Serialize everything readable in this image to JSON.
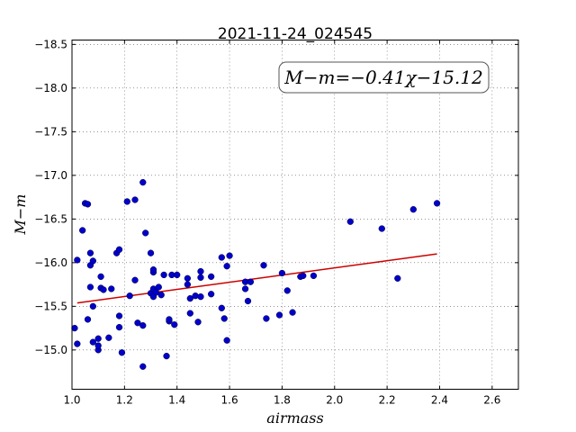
{
  "chart_data": {
    "type": "scatter",
    "title": "2021-11-24_024545",
    "xlabel": "airmass",
    "ylabel": "M−m",
    "xlim": [
      1.0,
      2.7
    ],
    "ylim": [
      -18.55,
      -14.55
    ],
    "y_inverted": true,
    "grid": true,
    "x_ticks": [
      "1.0",
      "1.2",
      "1.4",
      "1.6",
      "1.8",
      "2.0",
      "2.2",
      "2.4",
      "2.6"
    ],
    "y_ticks": [
      "−15.0",
      "−15.5",
      "−16.0",
      "−16.5",
      "−17.0",
      "−17.5",
      "−18.0",
      "−18.5"
    ],
    "annotation": "M−m=−0.41χ−15.12",
    "fit_line": {
      "slope": -0.41,
      "intercept": -15.12,
      "x_range": [
        1.02,
        2.39
      ],
      "color": "#cc0000"
    },
    "point_color": "#0000cc",
    "points": [
      [
        1.01,
        -15.25
      ],
      [
        1.02,
        -15.07
      ],
      [
        1.02,
        -16.03
      ],
      [
        1.04,
        -16.37
      ],
      [
        1.05,
        -16.68
      ],
      [
        1.06,
        -16.67
      ],
      [
        1.06,
        -15.35
      ],
      [
        1.07,
        -15.72
      ],
      [
        1.07,
        -15.97
      ],
      [
        1.07,
        -16.11
      ],
      [
        1.08,
        -15.09
      ],
      [
        1.08,
        -15.5
      ],
      [
        1.08,
        -16.02
      ],
      [
        1.1,
        -15.0
      ],
      [
        1.1,
        -15.05
      ],
      [
        1.1,
        -15.13
      ],
      [
        1.11,
        -15.71
      ],
      [
        1.11,
        -15.84
      ],
      [
        1.12,
        -15.69
      ],
      [
        1.14,
        -15.14
      ],
      [
        1.15,
        -15.7
      ],
      [
        1.17,
        -16.11
      ],
      [
        1.18,
        -16.15
      ],
      [
        1.18,
        -15.26
      ],
      [
        1.18,
        -15.39
      ],
      [
        1.19,
        -14.97
      ],
      [
        1.21,
        -16.7
      ],
      [
        1.22,
        -15.62
      ],
      [
        1.24,
        -16.72
      ],
      [
        1.24,
        -15.8
      ],
      [
        1.25,
        -15.31
      ],
      [
        1.27,
        -14.81
      ],
      [
        1.27,
        -15.28
      ],
      [
        1.27,
        -16.92
      ],
      [
        1.28,
        -16.34
      ],
      [
        1.3,
        -15.65
      ],
      [
        1.3,
        -16.11
      ],
      [
        1.31,
        -15.61
      ],
      [
        1.31,
        -15.7
      ],
      [
        1.31,
        -15.89
      ],
      [
        1.31,
        -15.92
      ],
      [
        1.32,
        -15.66
      ],
      [
        1.33,
        -15.72
      ],
      [
        1.34,
        -15.63
      ],
      [
        1.35,
        -15.86
      ],
      [
        1.36,
        -14.93
      ],
      [
        1.37,
        -15.33
      ],
      [
        1.37,
        -15.35
      ],
      [
        1.38,
        -15.86
      ],
      [
        1.39,
        -15.29
      ],
      [
        1.4,
        -15.86
      ],
      [
        1.44,
        -15.82
      ],
      [
        1.44,
        -15.75
      ],
      [
        1.45,
        -15.59
      ],
      [
        1.45,
        -15.42
      ],
      [
        1.47,
        -15.62
      ],
      [
        1.48,
        -15.32
      ],
      [
        1.49,
        -15.61
      ],
      [
        1.49,
        -15.83
      ],
      [
        1.49,
        -15.9
      ],
      [
        1.53,
        -15.64
      ],
      [
        1.53,
        -15.84
      ],
      [
        1.57,
        -16.06
      ],
      [
        1.57,
        -15.48
      ],
      [
        1.58,
        -15.36
      ],
      [
        1.59,
        -15.11
      ],
      [
        1.59,
        -15.96
      ],
      [
        1.6,
        -16.08
      ],
      [
        1.66,
        -15.7
      ],
      [
        1.66,
        -15.78
      ],
      [
        1.67,
        -15.56
      ],
      [
        1.68,
        -15.78
      ],
      [
        1.73,
        -15.97
      ],
      [
        1.74,
        -15.36
      ],
      [
        1.79,
        -15.4
      ],
      [
        1.8,
        -15.88
      ],
      [
        1.82,
        -15.68
      ],
      [
        1.84,
        -15.43
      ],
      [
        1.87,
        -15.84
      ],
      [
        1.88,
        -15.85
      ],
      [
        1.92,
        -15.85
      ],
      [
        2.06,
        -16.47
      ],
      [
        2.18,
        -16.39
      ],
      [
        2.24,
        -15.82
      ],
      [
        2.3,
        -16.61
      ],
      [
        2.39,
        -16.68
      ]
    ]
  }
}
